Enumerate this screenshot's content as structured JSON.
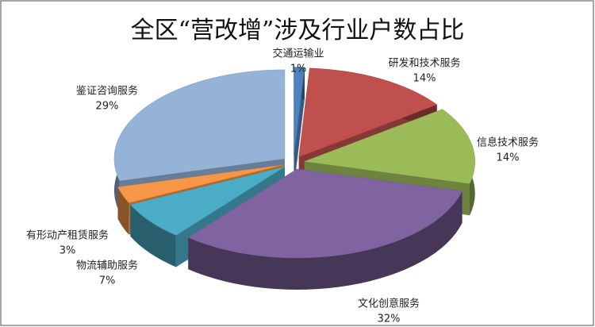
{
  "chart_data": {
    "type": "pie",
    "title": "全区“营改增”涉及行业户数占比",
    "categories": [
      "交通运输业",
      "研发和技术服务",
      "信息技术服务",
      "文化创意服务",
      "物流辅助服务",
      "有形动产租赁服务",
      "鉴证咨询服务"
    ],
    "values": [
      1,
      14,
      14,
      32,
      7,
      3,
      29
    ],
    "value_labels": [
      "1%",
      "14%",
      "14%",
      "32%",
      "7%",
      "3%",
      "29%"
    ],
    "colors": [
      "#4f81bd",
      "#c0504d",
      "#9bbb59",
      "#8064a2",
      "#4bacc6",
      "#f79646",
      "#95b3d7"
    ]
  }
}
